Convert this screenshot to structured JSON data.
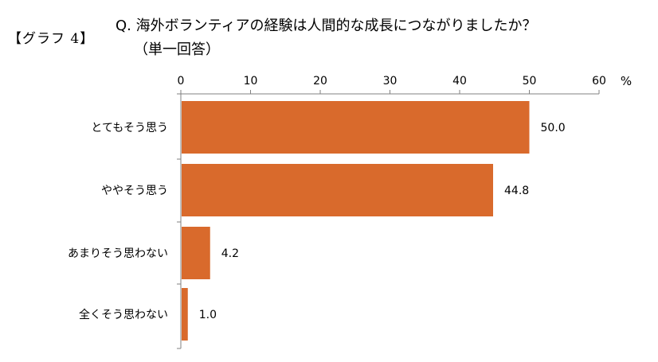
{
  "figure_label": "【グラフ 4】",
  "question": {
    "line1": "Q.  海外ボランティアの経験は人間的な成長につながりましたか？",
    "line2": "（単一回答）"
  },
  "colors": {
    "bar": "#D96A2C",
    "axis": "#808080",
    "text": "#000000"
  },
  "chart_data": {
    "type": "bar",
    "orientation": "horizontal",
    "categories": [
      "とてもそう思う",
      "ややそう思う",
      "あまりそう思わない",
      "全くそう思わない"
    ],
    "values": [
      50.0,
      44.8,
      4.2,
      1.0
    ],
    "value_labels": [
      "50.0",
      "44.8",
      "4.2",
      "1.0"
    ],
    "xlim": [
      0,
      60
    ],
    "xticks": [
      0,
      10,
      20,
      30,
      40,
      50,
      60
    ],
    "unit": "%",
    "axis_position": "top",
    "grid": false
  }
}
